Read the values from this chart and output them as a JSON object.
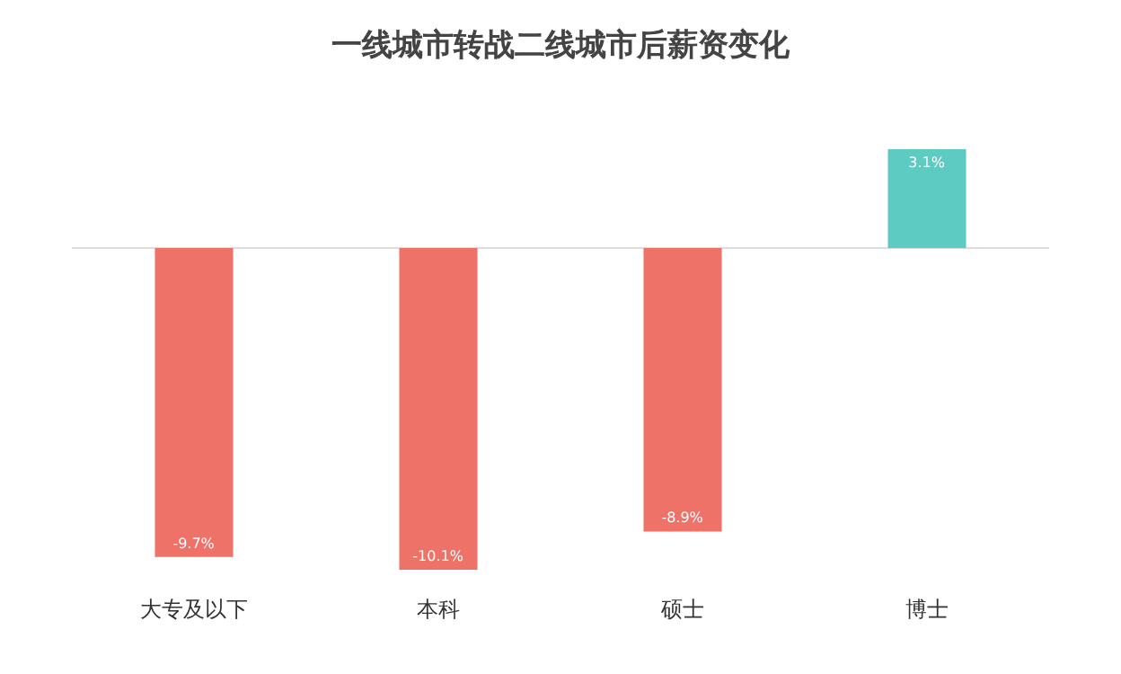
{
  "chart_data": {
    "type": "bar",
    "title": "一线城市转战二线城市后薪资变化",
    "categories": [
      "大专及以下",
      "本科",
      "硕士",
      "博士"
    ],
    "values": [
      -9.7,
      -10.1,
      -8.9,
      3.1
    ],
    "colors": [
      "#ee7268",
      "#ee7268",
      "#ee7268",
      "#5ecbc2"
    ],
    "value_labels": [
      "-9.7%",
      "-10.1%",
      "-8.9%",
      "3.1%"
    ],
    "tick_labels": "x",
    "legend": false
  }
}
